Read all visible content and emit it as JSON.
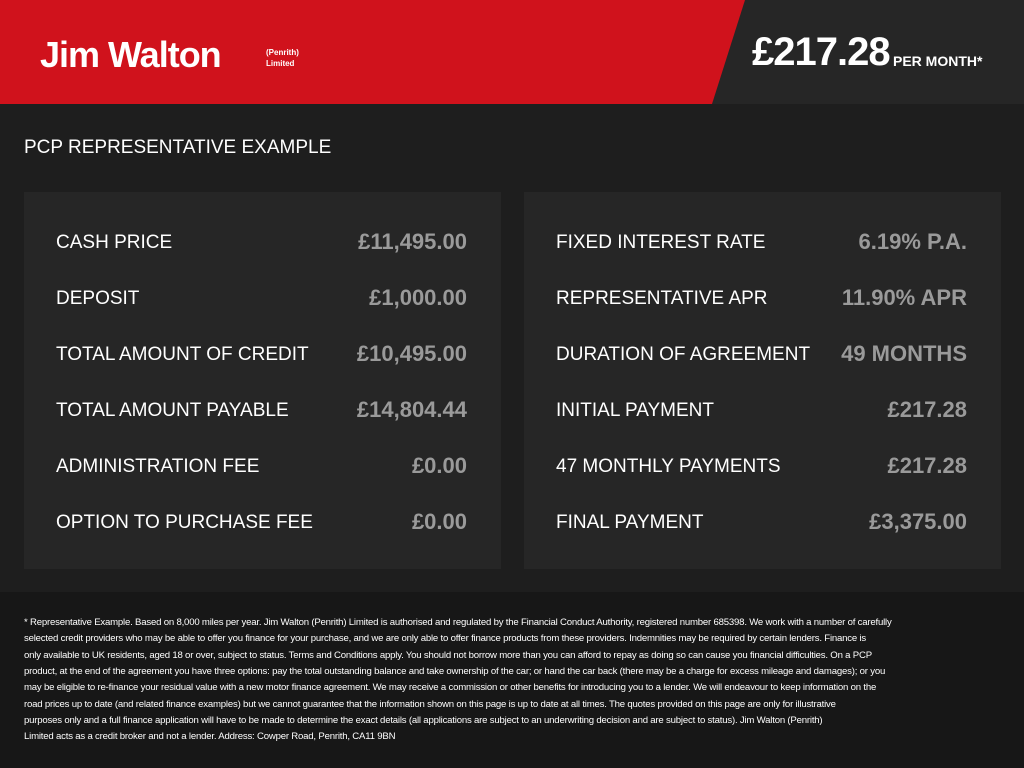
{
  "header": {
    "logo": "Jim Walton",
    "logo_sub_1": "(Penrith)",
    "logo_sub_2": "Limited",
    "price": "£217.28",
    "price_suffix": "PER MONTH*"
  },
  "section_title": "PCP REPRESENTATIVE EXAMPLE",
  "left_table": {
    "rows": [
      [
        "CASH PRICE",
        "£11,495.00"
      ],
      [
        "DEPOSIT",
        "£1,000.00"
      ],
      [
        "TOTAL AMOUNT OF CREDIT",
        "£10,495.00"
      ],
      [
        "TOTAL AMOUNT PAYABLE",
        "£14,804.44"
      ],
      [
        "ADMINISTRATION FEE",
        "£0.00"
      ],
      [
        "OPTION TO PURCHASE FEE",
        "£0.00"
      ]
    ]
  },
  "right_table": {
    "rows": [
      [
        "FIXED INTEREST RATE",
        "6.19% P.A."
      ],
      [
        "REPRESENTATIVE APR",
        "11.90% APR"
      ],
      [
        "DURATION OF AGREEMENT",
        "49 MONTHS"
      ],
      [
        "INITIAL PAYMENT",
        "£217.28"
      ],
      [
        "47 MONTHLY PAYMENTS",
        "£217.28"
      ],
      [
        "FINAL PAYMENT",
        "£3,375.00"
      ]
    ]
  },
  "disclaimer": {
    "lines": [
      "* Representative Example. Based on 8,000 miles per year. Jim Walton (Penrith) Limited is authorised and regulated by the Financial Conduct Authority, registered number 685398. We work with a number of carefully",
      "selected credit providers who may be able to offer you finance for your purchase, and we are only able to offer finance products from these providers. Indemnities may be required by certain lenders. Finance is",
      "only available to UK residents, aged 18 or over, subject to status. Terms and Conditions apply. You should not borrow more than you can afford to repay as doing so can cause you financial difficulties. On a PCP",
      "product, at the end of the agreement you have three options: pay the total outstanding balance and take ownership of the car; or hand the car back (there may be a charge for excess mileage and damages); or you",
      "may be eligible to re-finance your residual value with a new motor finance agreement. We may receive a commission or other benefits for introducing you to a lender. We will endeavour to keep information on the",
      "road prices up to date (and related finance examples) but we cannot guarantee that the information shown on this page is up to date at all times. The quotes provided on this page are only for illustrative",
      "purposes only and a full finance application will have to be made to determine the exact details (all applications are subject to an underwriting decision and are subject to status). Jim Walton (Penrith)",
      "Limited acts as a credit broker and not a lender. Address: Cowper Road, Penrith, CA11 9BN"
    ]
  }
}
